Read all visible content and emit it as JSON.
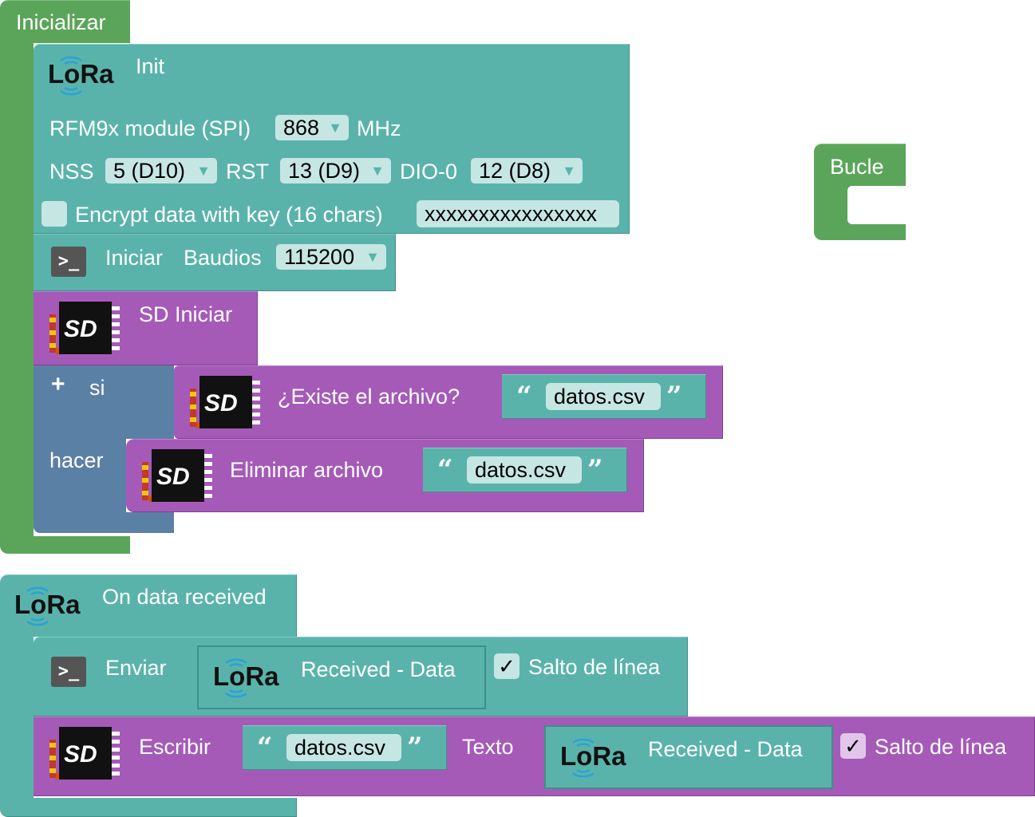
{
  "setup": {
    "title": "Inicializar"
  },
  "loop": {
    "title": "Bucle"
  },
  "lora_init": {
    "logo": "LoRa",
    "title": "Init",
    "module_label": "RFM9x module (SPI)",
    "freq_value": "868",
    "freq_unit": "MHz",
    "nss_label": "NSS",
    "nss_value": "5 (D10)",
    "rst_label": "RST",
    "rst_value": "13 (D9)",
    "dio_label": "DIO-0",
    "dio_value": "12 (D8)",
    "encrypt_label": "Encrypt data with key (16 chars)",
    "encrypt_key": "xxxxxxxxxxxxxxxx",
    "encrypt_checked": false
  },
  "serial_begin": {
    "icon": "terminal-icon",
    "label": "Iniciar",
    "baud_label": "Baudios",
    "baud_value": "115200"
  },
  "sd_init": {
    "icon": "sd-card-icon",
    "label": "SD Iniciar"
  },
  "if_block": {
    "plus": "+",
    "if_label": "si",
    "do_label": "hacer"
  },
  "sd_exists": {
    "label": "¿Existe el archivo?",
    "filename": "datos.csv"
  },
  "sd_remove": {
    "label": "Eliminar archivo",
    "filename": "datos.csv"
  },
  "on_receive": {
    "logo": "LoRa",
    "title": "On data received"
  },
  "serial_print": {
    "label": "Enviar",
    "received_logo": "LoRa",
    "received_label": "Received - Data",
    "newline_label": "Salto de línea",
    "newline_check": "✓"
  },
  "sd_write": {
    "label": "Escribir",
    "filename": "datos.csv",
    "text_label": "Texto",
    "received_logo": "LoRa",
    "received_label": "Received - Data",
    "newline_label": "Salto de línea",
    "newline_check": "✓"
  },
  "quotes": {
    "open": "“",
    "close": "”"
  },
  "dropdown_arrow": "▼",
  "colors": {
    "setup_green": "#5ba55b",
    "lora_teal": "#5ab3ab",
    "sd_purple": "#a55ab8",
    "logic_blue": "#5b80a5"
  }
}
